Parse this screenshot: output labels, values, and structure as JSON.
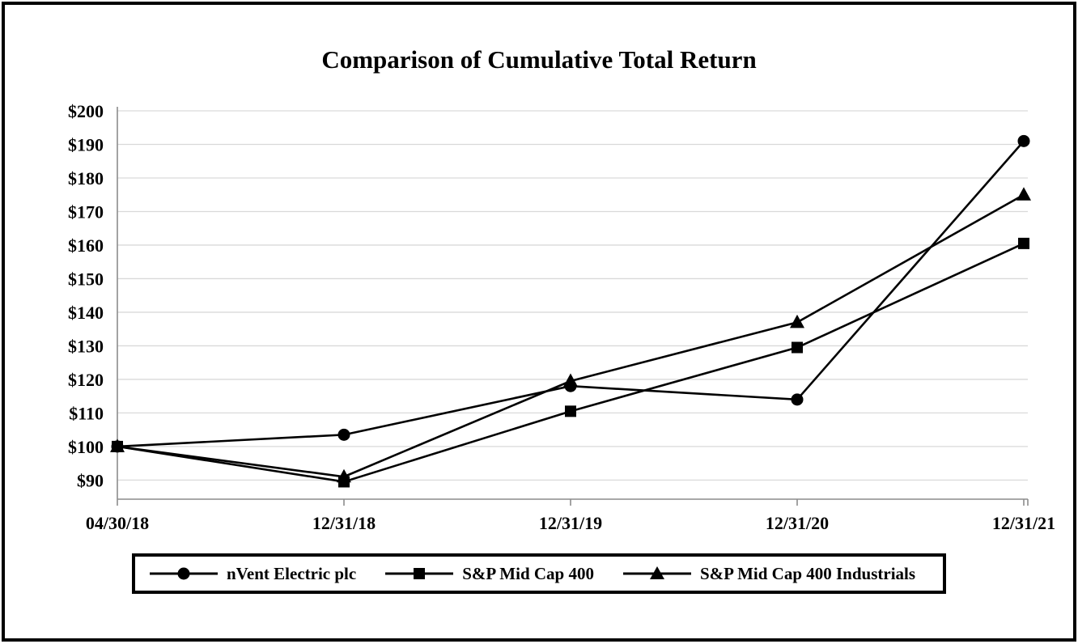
{
  "chart_data": {
    "type": "line",
    "title": "Comparison of Cumulative Total Return",
    "categories": [
      "04/30/18",
      "12/31/18",
      "12/31/19",
      "12/31/20",
      "12/31/21"
    ],
    "series": [
      {
        "name": "nVent Electric plc",
        "marker": "circle",
        "values": [
          100,
          103.5,
          118,
          114,
          191
        ]
      },
      {
        "name": "S&P Mid Cap 400",
        "marker": "square",
        "values": [
          100,
          89.5,
          110.5,
          129.5,
          160.5
        ]
      },
      {
        "name": "S&P Mid Cap 400 Industrials",
        "marker": "triangle",
        "values": [
          100,
          91,
          119.5,
          137,
          175
        ]
      }
    ],
    "y_ticks": [
      "$200",
      "$190",
      "$180",
      "$170",
      "$160",
      "$150",
      "$140",
      "$130",
      "$120",
      "$110",
      "$100",
      "$90"
    ],
    "y_tick_values": [
      200,
      190,
      180,
      170,
      160,
      150,
      140,
      130,
      120,
      110,
      100,
      90
    ],
    "ylim": [
      84,
      200
    ],
    "xlabel": "",
    "ylabel": "",
    "grid": true,
    "legend_position": "bottom",
    "colors": {
      "series": "#000000",
      "gridline": "#d9d9d9",
      "axis": "#8c8c8c",
      "text": "#000000",
      "border": "#000000",
      "background": "#ffffff"
    }
  }
}
